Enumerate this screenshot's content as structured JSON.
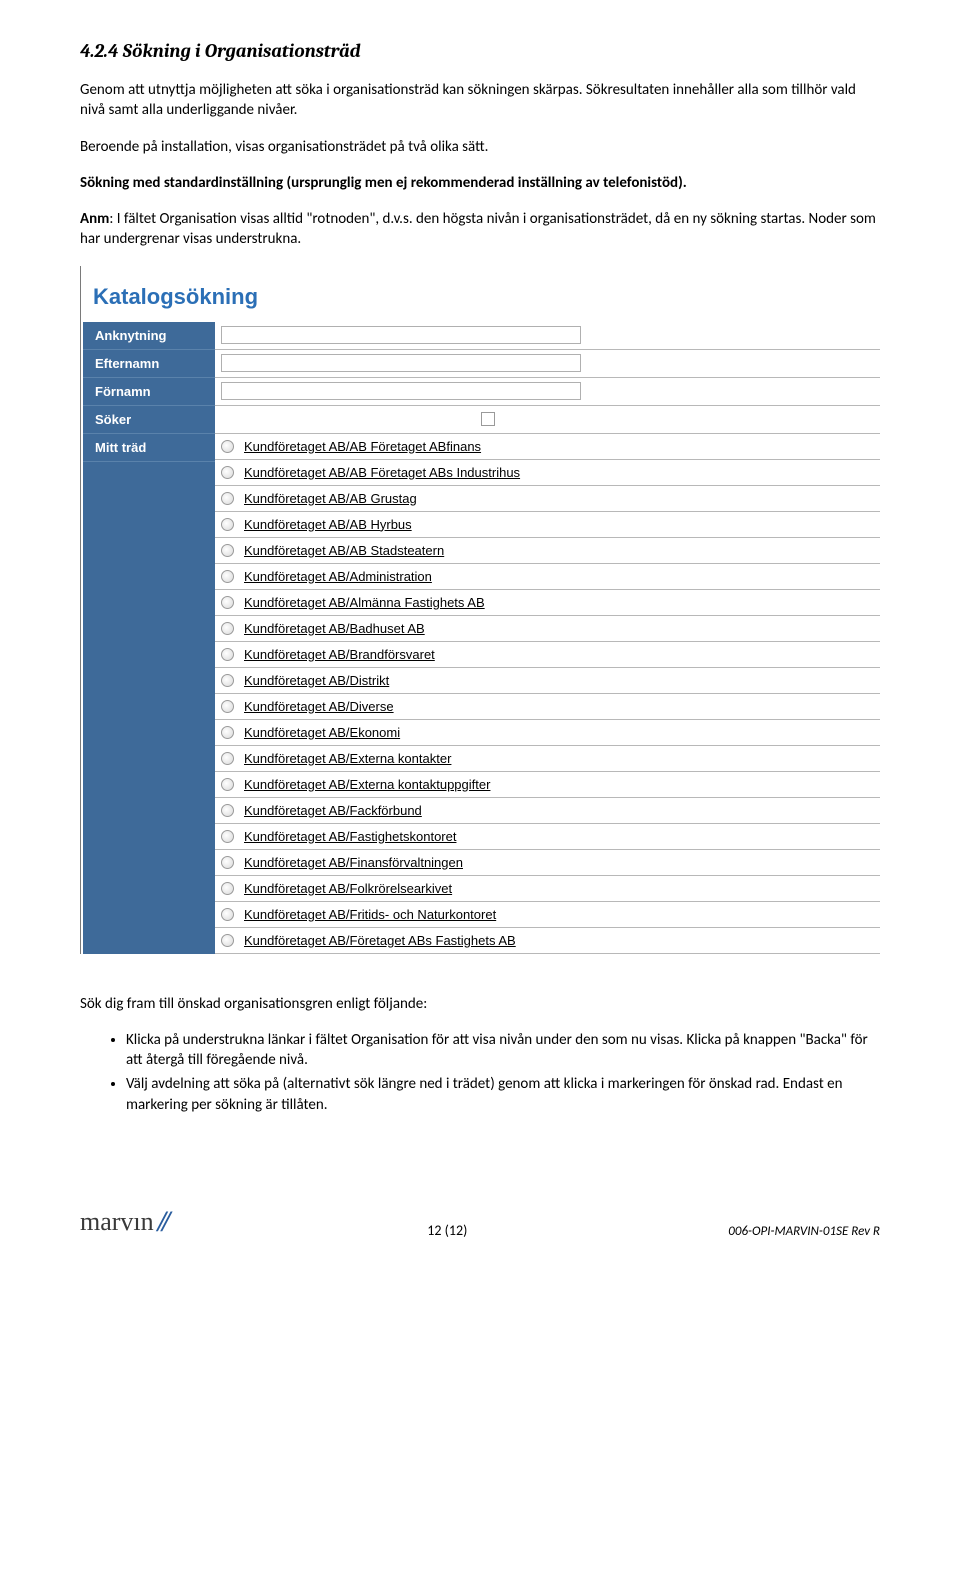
{
  "heading": "4.2.4   Sökning i Organisationsträd",
  "para1": "Genom att utnyttja möjligheten att söka i organisationsträd kan sökningen skärpas. Sökresultaten innehåller alla som tillhör vald nivå samt alla underliggande nivåer.",
  "para2": "Beroende på installation, visas organisationsträdet på två olika sätt.",
  "para3": "Sökning med standardinställning (ursprunglig men ej rekommenderad inställning av telefonistöd).",
  "para4_prefix": "Anm",
  "para4_rest": ": I fältet Organisation visas alltid \"rotnoden\", d.v.s. den högsta nivån i organisationsträdet, då en ny sökning startas. Noder som har undergrenar visas understrukna.",
  "ks": {
    "title": "Katalogsökning",
    "labels": [
      "Anknytning",
      "Efternamn",
      "Förnamn",
      "Söker",
      "Mitt träd"
    ],
    "tree": [
      "Kundföretaget AB/AB Företaget ABfinans",
      "Kundföretaget AB/AB Företaget ABs Industrihus",
      "Kundföretaget AB/AB Grustag",
      "Kundföretaget AB/AB Hyrbus",
      "Kundföretaget AB/AB Stadsteatern",
      "Kundföretaget AB/Administration",
      "Kundföretaget AB/Almänna Fastighets AB",
      "Kundföretaget AB/Badhuset AB",
      "Kundföretaget AB/Brandförsvaret",
      "Kundföretaget AB/Distrikt",
      "Kundföretaget AB/Diverse",
      "Kundföretaget AB/Ekonomi",
      "Kundföretaget AB/Externa kontakter",
      "Kundföretaget AB/Externa kontaktuppgifter",
      "Kundföretaget AB/Fackförbund",
      "Kundföretaget AB/Fastighetskontoret",
      "Kundföretaget AB/Finansförvaltningen",
      "Kundföretaget AB/Folkrörelsearkivet",
      "Kundföretaget AB/Fritids- och Naturkontoret",
      "Kundföretaget AB/Företaget ABs Fastighets AB"
    ]
  },
  "after_para": "Sök dig fram till önskad organisationsgren enligt följande:",
  "bullets": [
    "Klicka på understrukna länkar i fältet Organisation för att visa nivån under den som nu visas. Klicka på knappen \"Backa\" för att återgå till föregående nivå.",
    "Välj avdelning att söka på (alternativt sök längre ned i trädet) genom att klicka i markeringen för önskad rad. Endast en markering per sökning är tillåten."
  ],
  "footer": {
    "logo": "marvın",
    "page": "12 (12)",
    "docid": "006-OPI-MARVIN-01SE Rev R"
  }
}
